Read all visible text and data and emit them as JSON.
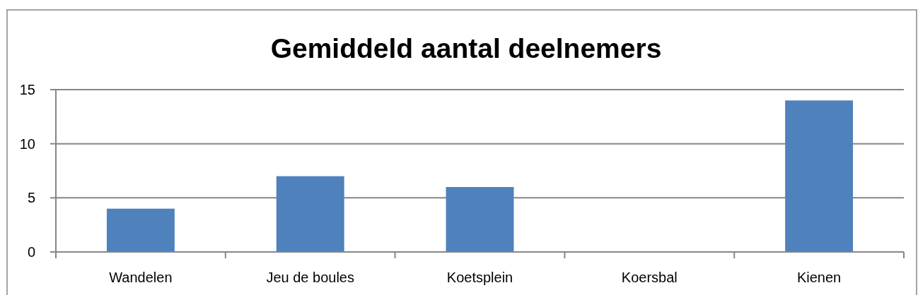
{
  "chart_data": {
    "type": "bar",
    "title": "Gemiddeld aantal deelnemers",
    "categories": [
      "Wandelen",
      "Jeu de boules",
      "Koetsplein",
      "Koersbal",
      "Kienen"
    ],
    "values": [
      4,
      7,
      6,
      0,
      14
    ],
    "color": "#4f81bd",
    "ylim": [
      0,
      15
    ],
    "yticks": [
      0,
      5,
      10,
      15
    ],
    "grid": "y"
  }
}
